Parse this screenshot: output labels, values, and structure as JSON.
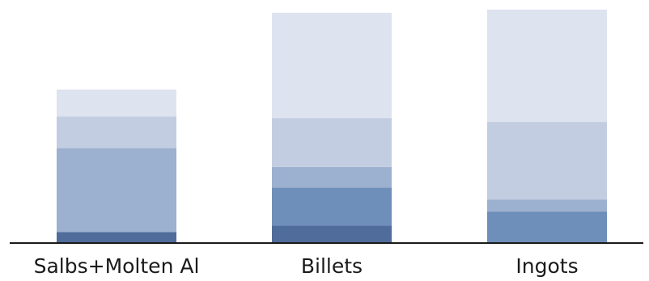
{
  "chart_data": {
    "type": "bar",
    "stacked": true,
    "categories": [
      "Salbs+Molten Al",
      "Billets",
      "Ingots"
    ],
    "series": [
      {
        "color": "#4f6c9b",
        "values": [
          14,
          22,
          0
        ]
      },
      {
        "color": "#6f8fbb",
        "values": [
          0,
          48,
          40
        ]
      },
      {
        "color": "#9cb0cf",
        "values": [
          106,
          26,
          15
        ]
      },
      {
        "color": "#c2cde1",
        "values": [
          40,
          62,
          98
        ]
      },
      {
        "color": "#dde3ef",
        "values": [
          34,
          133,
          142
        ]
      }
    ],
    "ylim": [
      0,
      300
    ],
    "grid": false,
    "legend": "none",
    "axis_color": "#1a1a1a"
  }
}
